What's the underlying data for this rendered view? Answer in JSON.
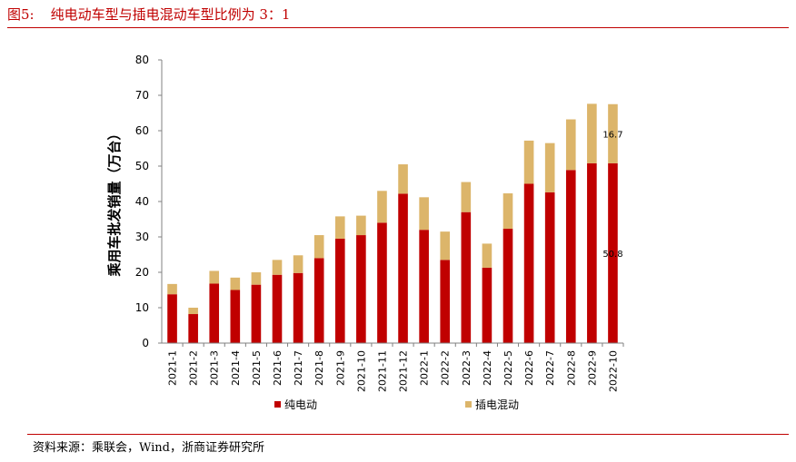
{
  "figure": {
    "label": "图5:",
    "title": "纯电动车型与插电混动车型比例为 3：1"
  },
  "source": "资料来源：乘联会，Wind，浙商证券研究所",
  "chart_data": {
    "type": "bar",
    "stacked": true,
    "ylabel": "乘用车批发销量（万台）",
    "ylim": [
      0,
      80
    ],
    "yticks": [
      0,
      10,
      20,
      30,
      40,
      50,
      60,
      70,
      80
    ],
    "categories": [
      "2021-1",
      "2021-2",
      "2021-3",
      "2021-4",
      "2021-5",
      "2021-6",
      "2021-7",
      "2021-8",
      "2021-9",
      "2021-10",
      "2021-11",
      "2021-12",
      "2022-1",
      "2022-2",
      "2022-3",
      "2022-4",
      "2022-5",
      "2022-6",
      "2022-7",
      "2022-8",
      "2022-9",
      "2022-10"
    ],
    "series": [
      {
        "name": "纯电动",
        "color": "#c00000",
        "values": [
          13.8,
          8.2,
          16.8,
          15.0,
          16.5,
          19.3,
          19.8,
          24.0,
          29.5,
          30.5,
          34.0,
          42.2,
          32.0,
          23.5,
          37.0,
          21.3,
          32.3,
          45.0,
          42.6,
          48.9,
          50.8,
          50.8
        ]
      },
      {
        "name": "插电混动",
        "color": "#dcb56a",
        "values": [
          2.9,
          1.8,
          3.6,
          3.5,
          3.5,
          4.2,
          5.0,
          6.5,
          6.3,
          5.5,
          9.0,
          8.3,
          9.2,
          8.0,
          8.5,
          6.8,
          10.0,
          12.2,
          13.9,
          14.3,
          16.8,
          16.7
        ]
      }
    ],
    "data_labels": [
      {
        "category": "2022-10",
        "series": "纯电动",
        "text": "50.8"
      },
      {
        "category": "2022-10",
        "series": "插电混动",
        "text": "16.7"
      }
    ],
    "legend_position": "bottom",
    "grid": false
  }
}
